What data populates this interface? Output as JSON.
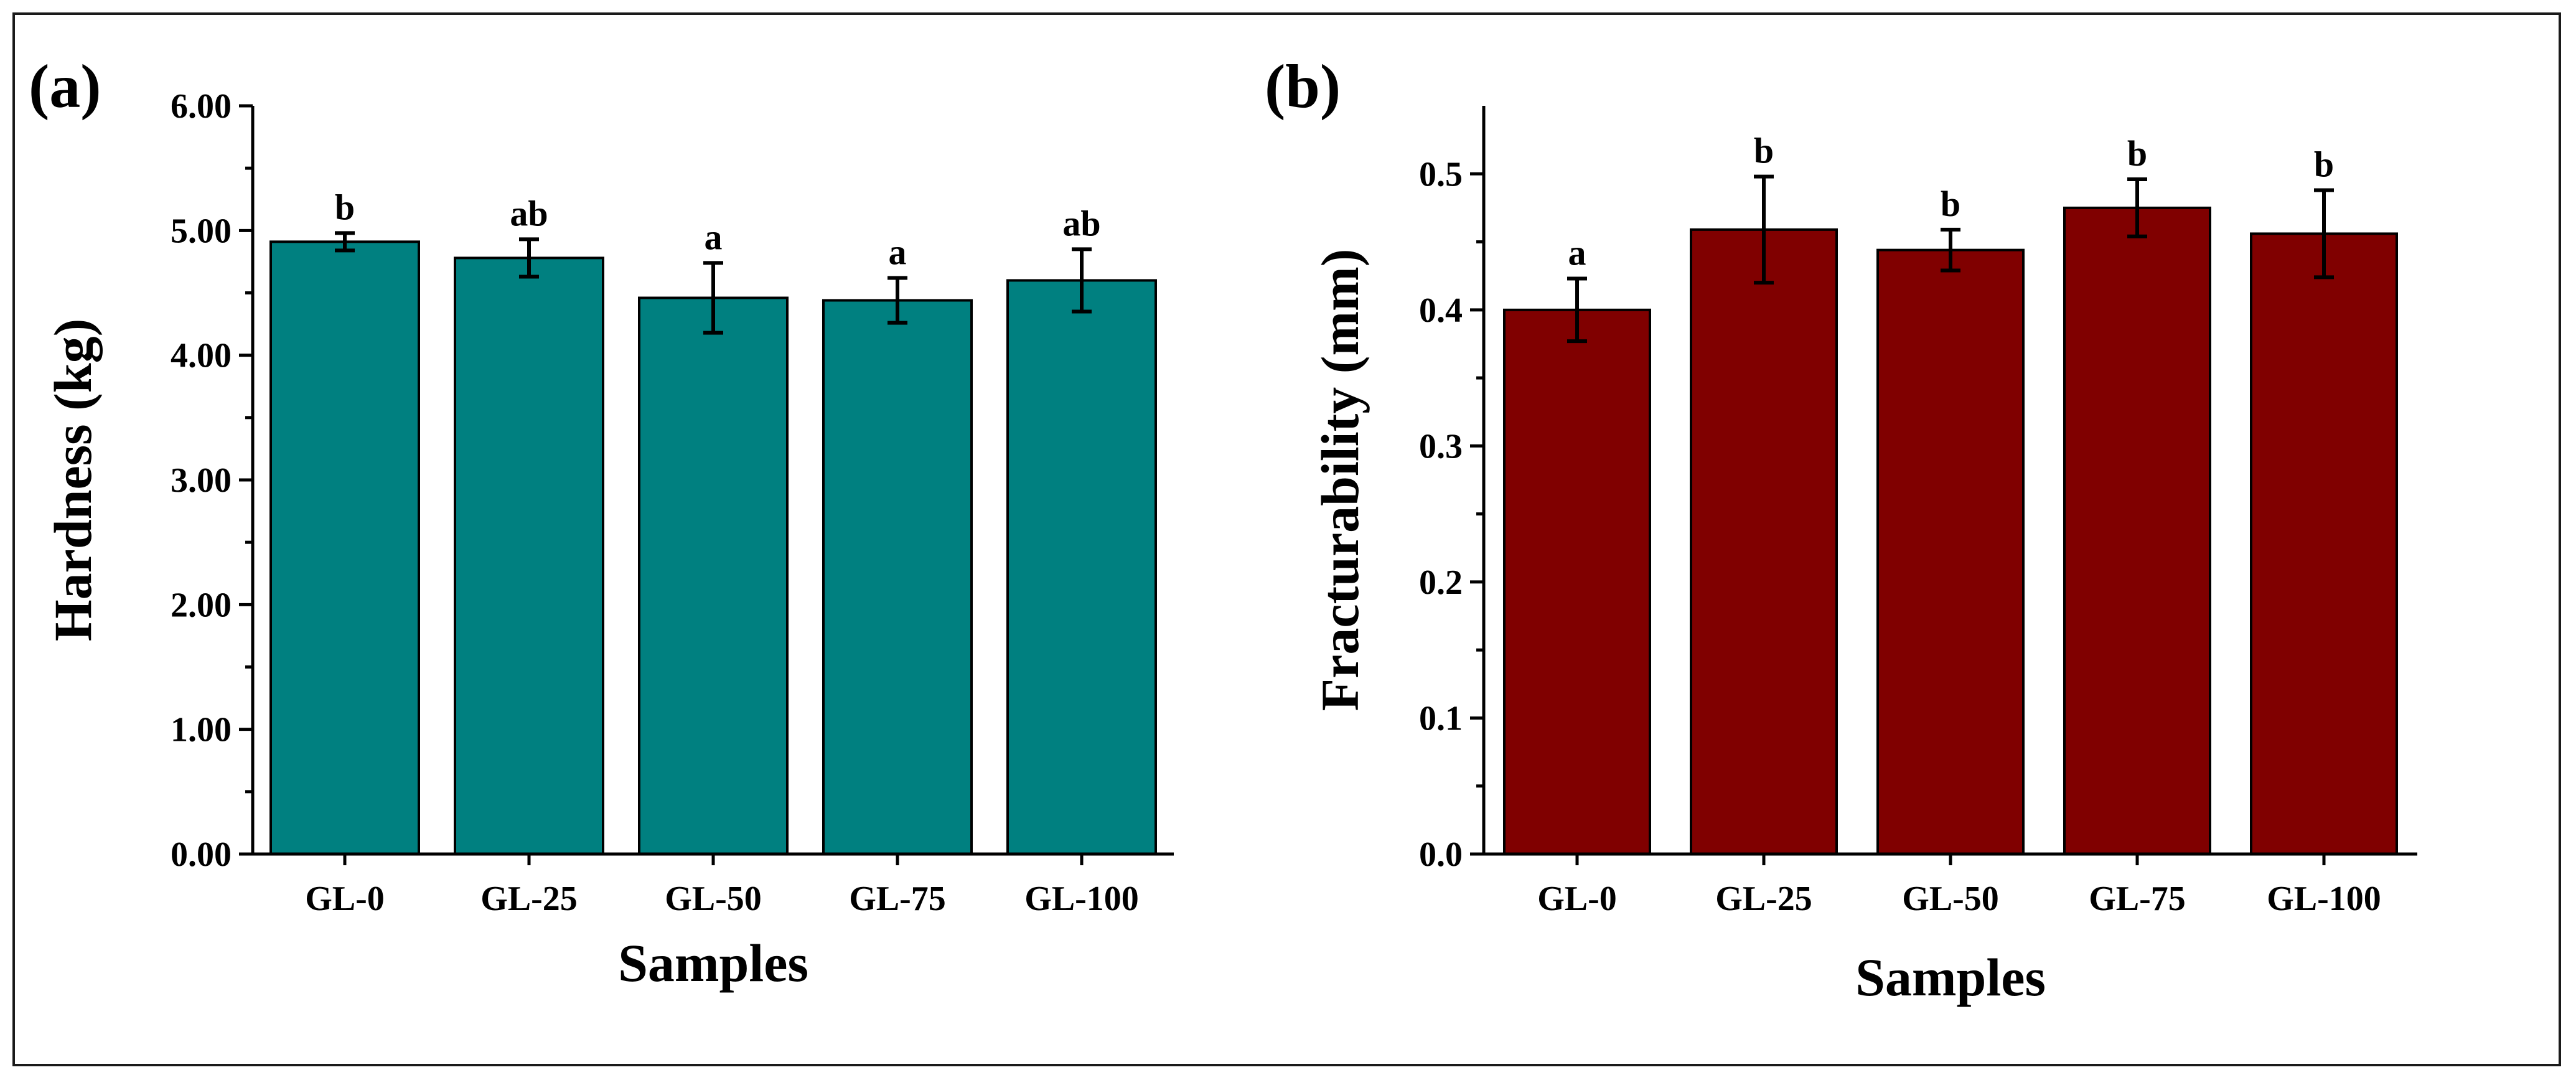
{
  "chart_data": [
    {
      "type": "bar",
      "panel_label": "(a)",
      "categories": [
        "GL-0",
        "GL-25",
        "GL-50",
        "GL-75",
        "GL-100"
      ],
      "values": [
        4.91,
        4.78,
        4.46,
        4.44,
        4.6
      ],
      "errors": [
        0.07,
        0.15,
        0.28,
        0.18,
        0.25
      ],
      "significance": [
        "b",
        "ab",
        "a",
        "a",
        "ab"
      ],
      "xlabel": "Samples",
      "ylabel": "Hardness (kg)",
      "ylim": [
        0,
        6
      ],
      "yticks": [
        0,
        1,
        2,
        3,
        4,
        5,
        6
      ],
      "ytick_labels": [
        "0.00",
        "1.00",
        "2.00",
        "3.00",
        "4.00",
        "5.00",
        "6.00"
      ],
      "bar_color": "#008080",
      "grid": false
    },
    {
      "type": "bar",
      "panel_label": "(b)",
      "categories": [
        "GL-0",
        "GL-25",
        "GL-50",
        "GL-75",
        "GL-100"
      ],
      "values": [
        0.4,
        0.459,
        0.444,
        0.475,
        0.456
      ],
      "errors": [
        0.023,
        0.039,
        0.015,
        0.021,
        0.032
      ],
      "significance": [
        "a",
        "b",
        "b",
        "b",
        "b"
      ],
      "xlabel": "Samples",
      "ylabel": "Fracturability (mm)",
      "ylim": [
        0,
        0.55
      ],
      "yticks": [
        0,
        0.1,
        0.2,
        0.3,
        0.4,
        0.5
      ],
      "ytick_labels": [
        "0.0",
        "0.1",
        "0.2",
        "0.3",
        "0.4",
        "0.5"
      ],
      "bar_color": "#800000",
      "grid": false
    }
  ]
}
